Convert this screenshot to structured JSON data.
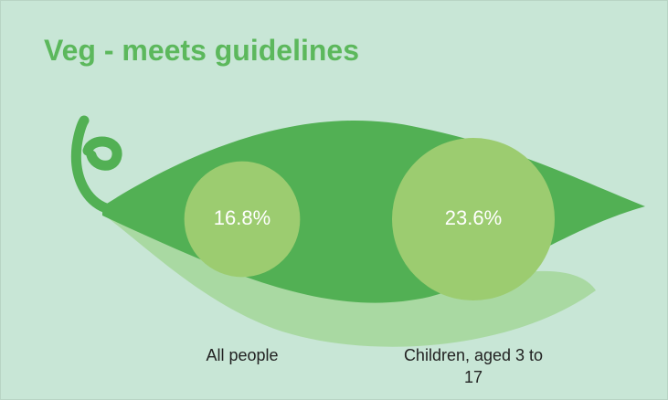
{
  "chart_data": {
    "type": "bubble",
    "title": "Veg - meets guidelines",
    "categories": [
      "All people",
      "Children, aged 3 to 17"
    ],
    "values": [
      16.8,
      23.6
    ],
    "value_labels": [
      "16.8%",
      "23.6%"
    ],
    "color": "#9ccc70"
  }
}
